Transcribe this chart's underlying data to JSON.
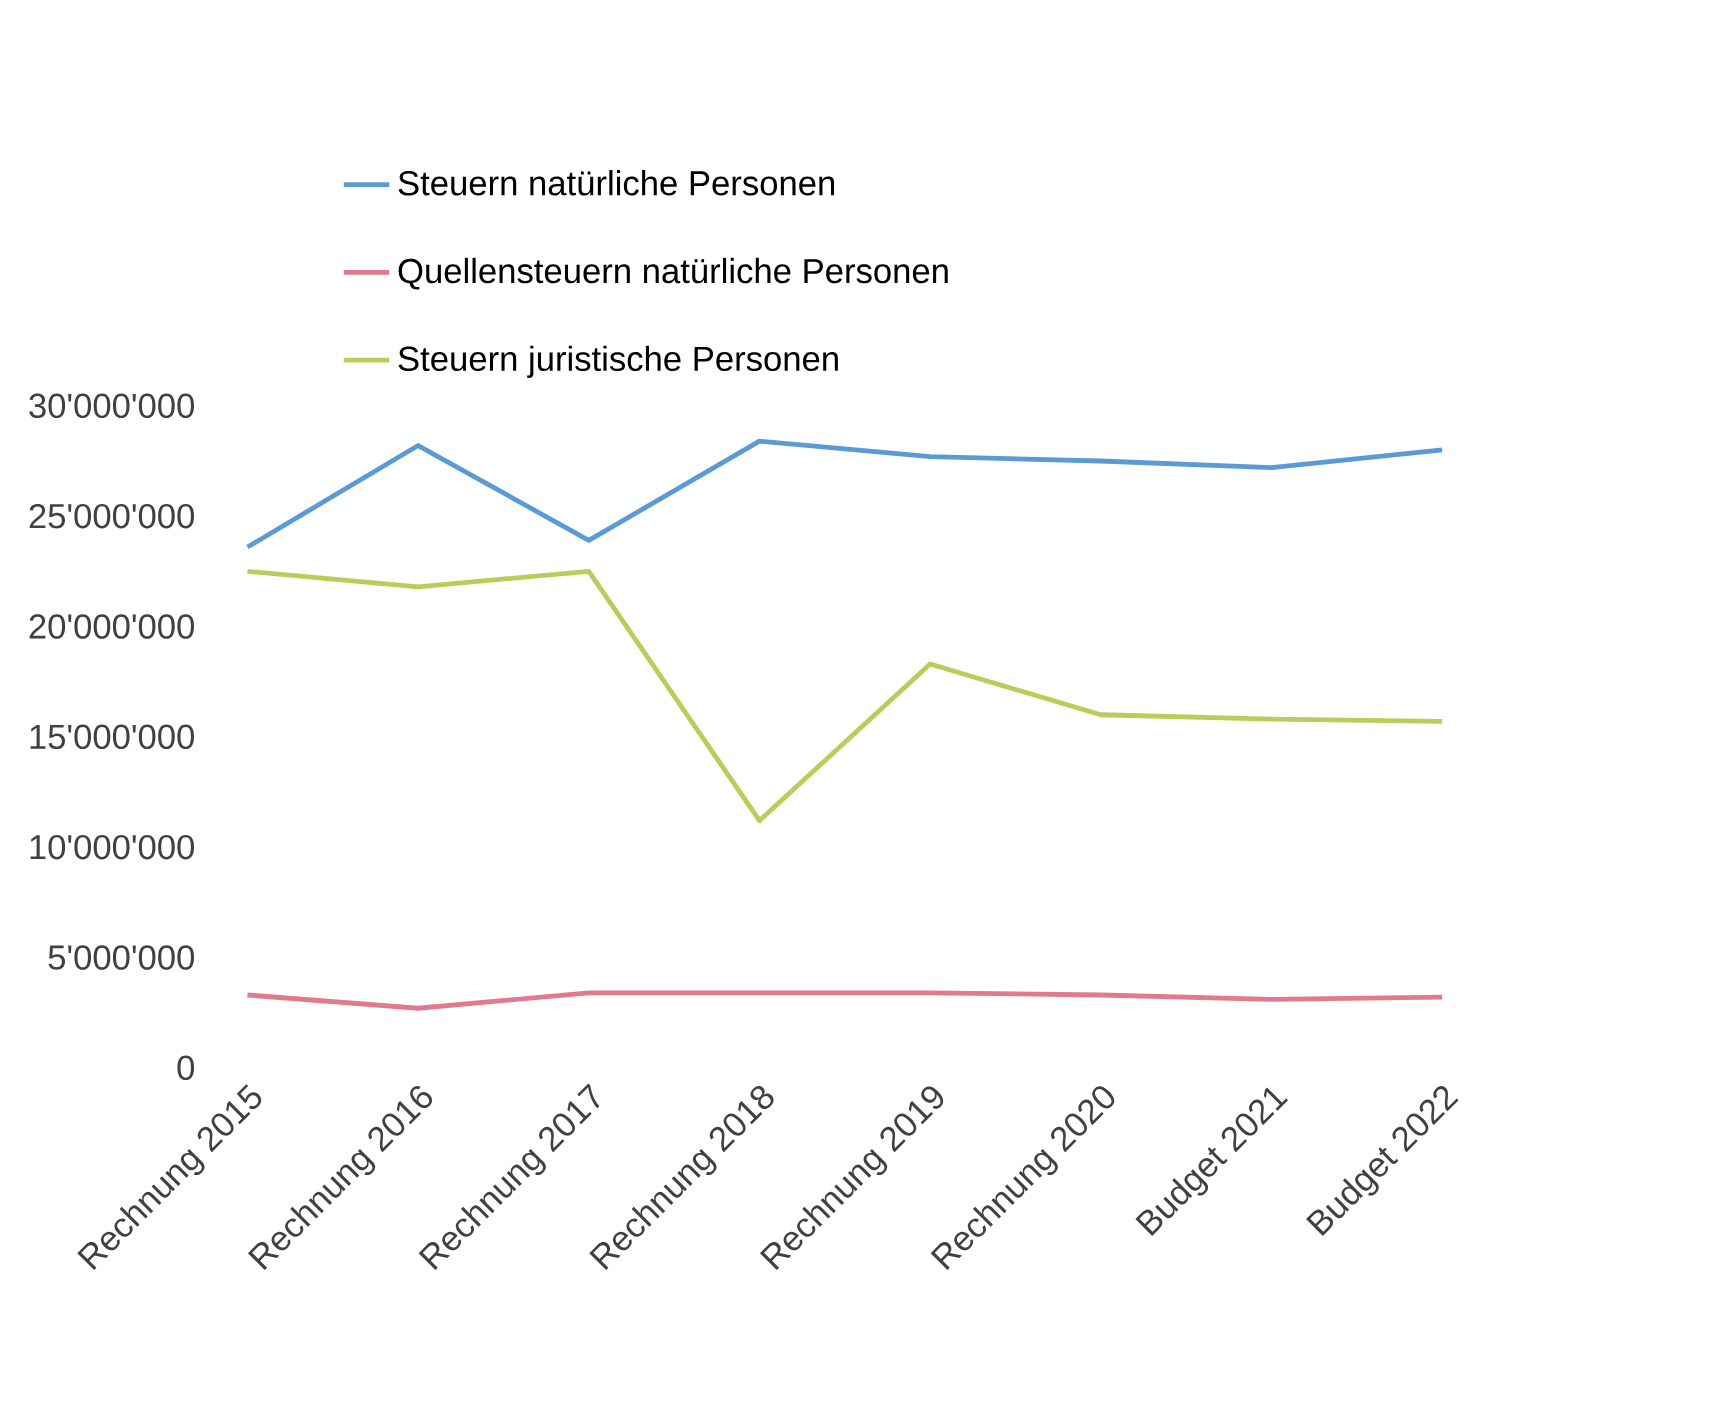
{
  "chart_data": {
    "type": "line",
    "categories": [
      "Rechnung 2015",
      "Rechnung 2016",
      "Rechnung 2017",
      "Rechnung 2018",
      "Rechnung 2019",
      "Rechnung 2020",
      "Budget 2021",
      "Budget 2022"
    ],
    "series": [
      {
        "name": "Steuern natürliche Personen",
        "color": "#5b9bd5",
        "values": [
          23600000,
          28200000,
          23900000,
          28400000,
          27700000,
          27500000,
          27200000,
          28000000
        ]
      },
      {
        "name": "Quellensteuern natürliche Personen",
        "color": "#e07a8c",
        "values": [
          3300000,
          2700000,
          3400000,
          3400000,
          3400000,
          3300000,
          3100000,
          3200000
        ]
      },
      {
        "name": "Steuern juristische Personen",
        "color": "#b5cf5a",
        "values": [
          22500000,
          21800000,
          22500000,
          11200000,
          18300000,
          16000000,
          15800000,
          15700000
        ]
      }
    ],
    "ylim": [
      0,
      30000000
    ],
    "yticks": [
      {
        "value": 0,
        "label": "0"
      },
      {
        "value": 5000000,
        "label": "5'000'000"
      },
      {
        "value": 10000000,
        "label": "10'000'000"
      },
      {
        "value": 15000000,
        "label": "15'000'000"
      },
      {
        "value": 20000000,
        "label": "20'000'000"
      },
      {
        "value": 25000000,
        "label": "25'000'000"
      },
      {
        "value": 30000000,
        "label": "30'000'000"
      }
    ],
    "grid": false,
    "legend": "top",
    "marker": "none",
    "line_style": "solid"
  }
}
